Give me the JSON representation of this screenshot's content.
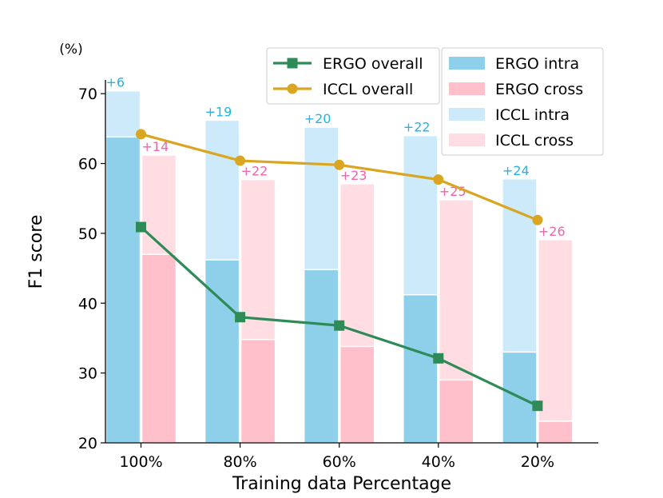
{
  "chart_data": {
    "type": "bar",
    "title": "",
    "xlabel": "Training data Percentage",
    "ylabel": "F1 score",
    "unit_label": "(%)",
    "ylim": [
      20,
      75
    ],
    "yticks": [
      20,
      30,
      40,
      50,
      60,
      70
    ],
    "categories": [
      "100%",
      "80%",
      "60%",
      "40%",
      "20%"
    ],
    "bar_series": [
      {
        "name": "ERGO intra",
        "group": "intra",
        "layer": "base",
        "color": "#8ecfea",
        "values": [
          63.8,
          46.2,
          44.8,
          41.2,
          33.0
        ]
      },
      {
        "name": "ERGO cross",
        "group": "cross",
        "layer": "base",
        "color": "#ffc0cb",
        "values": [
          47.0,
          34.8,
          33.8,
          29.0,
          23.1
        ]
      },
      {
        "name": "ICCL intra",
        "group": "intra",
        "layer": "total",
        "color": "#cdeafb",
        "values": [
          70.4,
          66.2,
          65.2,
          64.0,
          57.8
        ]
      },
      {
        "name": "ICCL cross",
        "group": "cross",
        "layer": "total",
        "color": "#ffdde3",
        "values": [
          61.2,
          57.7,
          57.1,
          54.8,
          49.1
        ]
      }
    ],
    "line_series": [
      {
        "name": "ERGO overall",
        "color": "#2e8b57",
        "marker": "square",
        "values": [
          50.9,
          38.0,
          36.8,
          32.1,
          25.3
        ]
      },
      {
        "name": "ICCL overall",
        "color": "#daa520",
        "marker": "circle",
        "values": [
          64.2,
          60.4,
          59.8,
          57.7,
          51.9
        ]
      }
    ],
    "gain_labels": {
      "intra": {
        "color": "#1fb5ea",
        "labels": [
          "+6",
          "+19",
          "+20",
          "+22",
          "+24"
        ]
      },
      "cross": {
        "color": "#ee66aa",
        "labels": [
          "+14",
          "+22",
          "+23",
          "+25",
          "+26"
        ]
      }
    },
    "legend_lines": [
      "ERGO overall",
      "ICCL overall"
    ],
    "legend_bars": [
      "ERGO intra",
      "ERGO cross",
      "ICCL intra",
      "ICCL cross"
    ]
  }
}
